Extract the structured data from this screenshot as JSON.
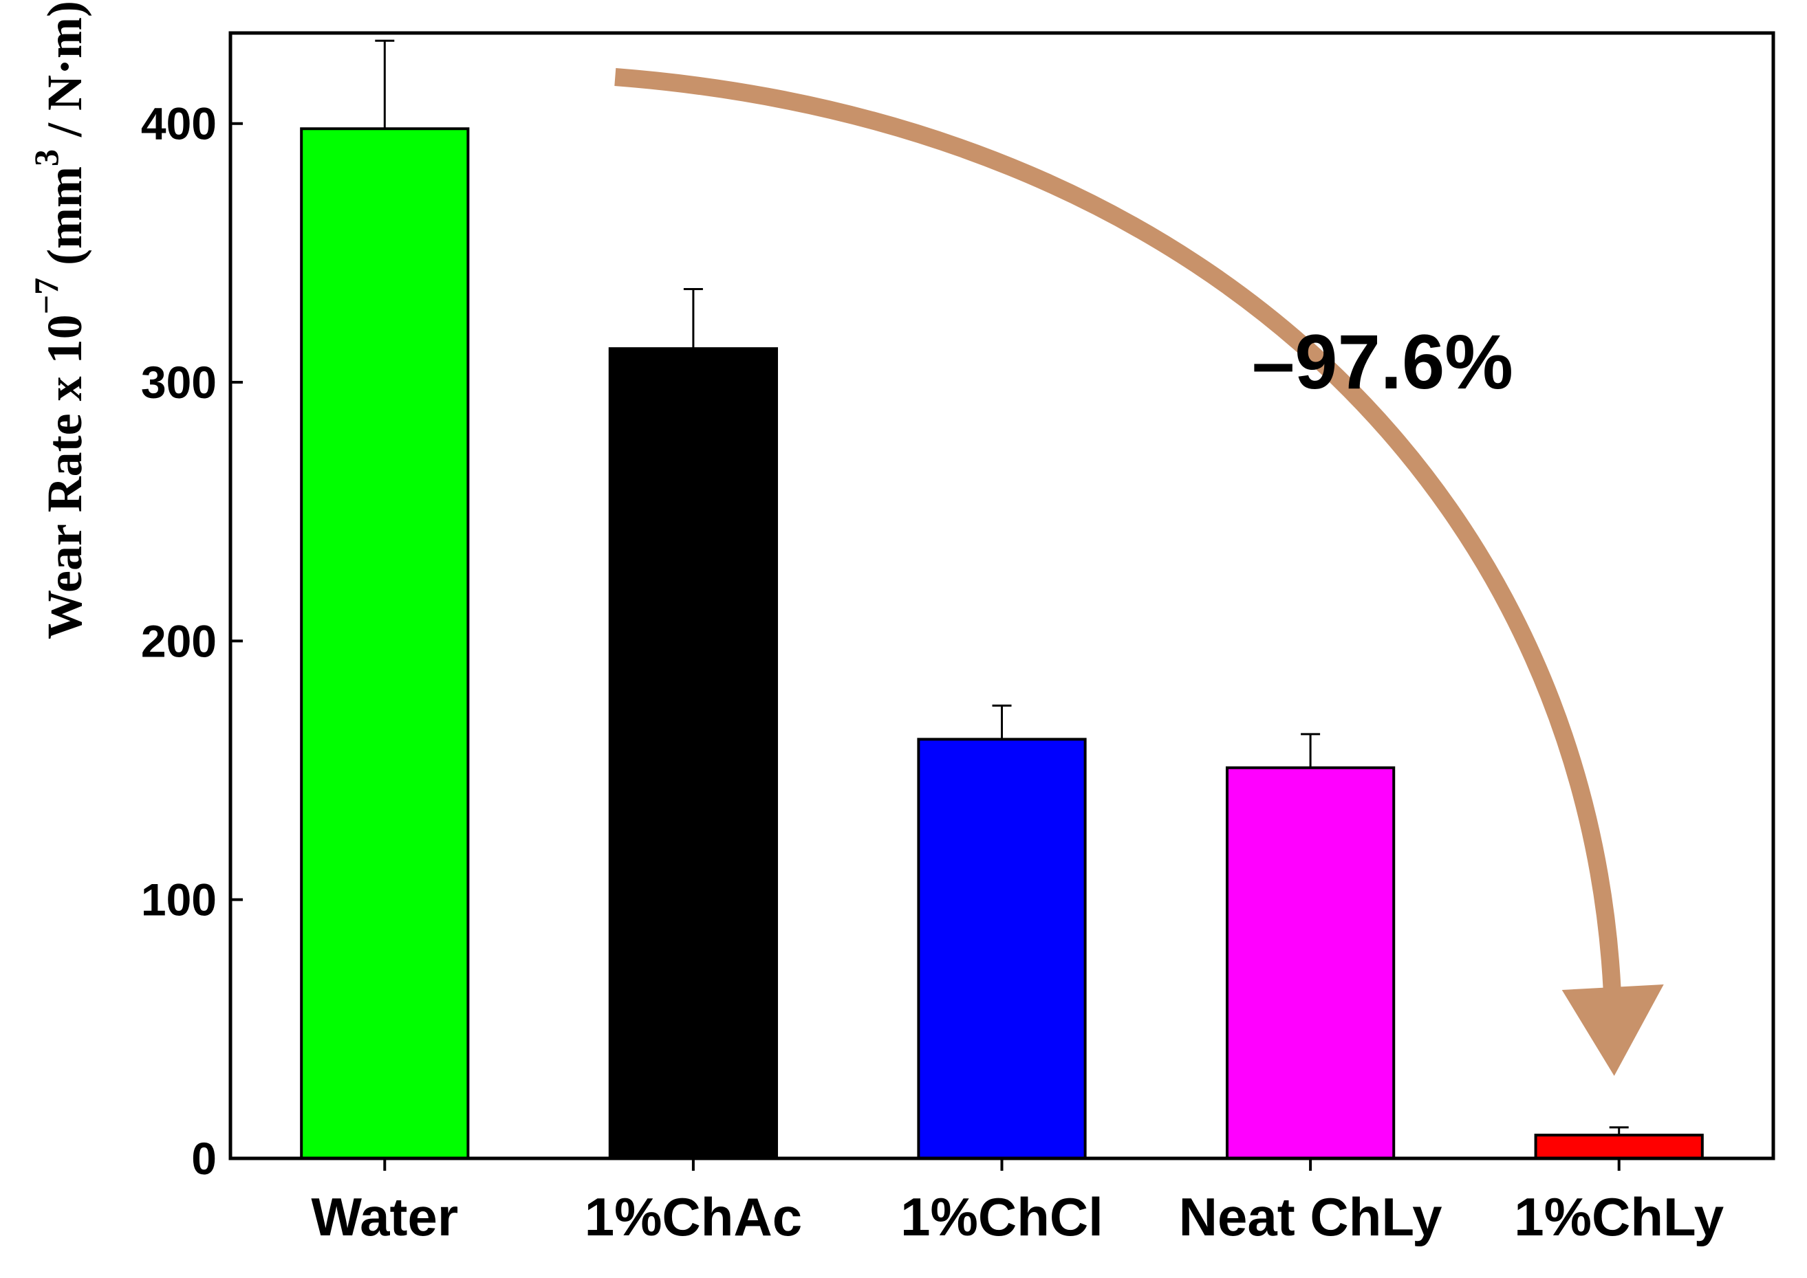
{
  "chart_data": {
    "type": "bar",
    "title": "",
    "xlabel": "",
    "ylabel": {
      "main": "Wear Rate x 10",
      "exponent": "−7",
      "unit_open": " (mm",
      "unit_exponent": "3",
      "unit_close": " / N·m)"
    },
    "ylim": [
      0,
      435
    ],
    "yticks": [
      0,
      100,
      200,
      300,
      400
    ],
    "grid": false,
    "categories": [
      "Water",
      "1%ChAc",
      "1%ChCl",
      "Neat ChLy",
      "1%ChLy"
    ],
    "values": [
      398,
      313,
      162,
      151,
      9
    ],
    "error": [
      34,
      23,
      13,
      13,
      3
    ],
    "colors": [
      "#00ff00",
      "#000000",
      "#0000ff",
      "#ff00ff",
      "#ff0000"
    ],
    "annotation": {
      "text": "–97.6%",
      "arrow_from": "Water",
      "arrow_to": "1%ChLy",
      "arrow_color": "#c8926a"
    }
  }
}
